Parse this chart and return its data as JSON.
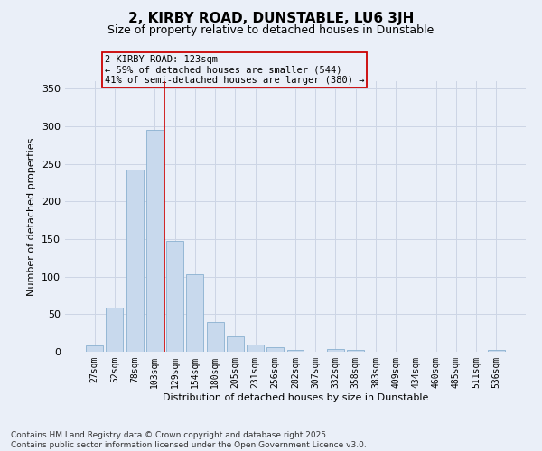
{
  "title": "2, KIRBY ROAD, DUNSTABLE, LU6 3JH",
  "subtitle": "Size of property relative to detached houses in Dunstable",
  "xlabel": "Distribution of detached houses by size in Dunstable",
  "ylabel": "Number of detached properties",
  "categories": [
    "27sqm",
    "52sqm",
    "78sqm",
    "103sqm",
    "129sqm",
    "154sqm",
    "180sqm",
    "205sqm",
    "231sqm",
    "256sqm",
    "282sqm",
    "307sqm",
    "332sqm",
    "358sqm",
    "383sqm",
    "409sqm",
    "434sqm",
    "460sqm",
    "485sqm",
    "511sqm",
    "536sqm"
  ],
  "values": [
    8,
    59,
    243,
    295,
    148,
    103,
    40,
    20,
    10,
    6,
    3,
    0,
    4,
    2,
    0,
    0,
    0,
    0,
    0,
    0,
    2
  ],
  "bar_color": "#c8d9ed",
  "bar_edge_color": "#8ab0d0",
  "grid_color": "#cdd5e5",
  "bg_color": "#eaeff8",
  "vline_color": "#cc0000",
  "vline_pos": 3.5,
  "annotation_text": "2 KIRBY ROAD: 123sqm\n← 59% of detached houses are smaller (544)\n41% of semi-detached houses are larger (380) →",
  "annotation_box_color": "#cc0000",
  "ylim": [
    0,
    360
  ],
  "yticks": [
    0,
    50,
    100,
    150,
    200,
    250,
    300,
    350
  ],
  "footer": "Contains HM Land Registry data © Crown copyright and database right 2025.\nContains public sector information licensed under the Open Government Licence v3.0.",
  "title_fontsize": 11,
  "subtitle_fontsize": 9,
  "tick_fontsize": 7,
  "ylabel_fontsize": 8,
  "xlabel_fontsize": 8,
  "annotation_fontsize": 7.5,
  "footer_fontsize": 6.5
}
